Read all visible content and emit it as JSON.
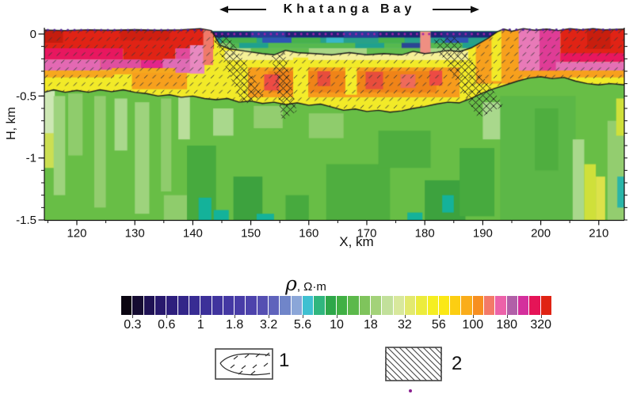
{
  "title": {
    "text": "Khatanga Bay"
  },
  "axes": {
    "x_label": "X, km",
    "y_label": "H, km",
    "x_ticks": [
      120,
      130,
      140,
      150,
      160,
      170,
      180,
      190,
      200,
      210
    ],
    "x_minor_ticks": [
      115,
      125,
      135,
      145,
      155,
      165,
      175,
      185,
      195,
      205
    ],
    "y_ticks": [
      0,
      -0.5,
      -1,
      -1.5
    ],
    "y_tick_labels": [
      "0",
      "-0.5",
      "-1",
      "-1.5"
    ],
    "y_minor_step": 0.1
  },
  "colorbar": {
    "title_rho": "ρ",
    "title_units": ", Ω·m",
    "labels": [
      "0.3",
      "0.6",
      "1",
      "1.8",
      "3.2",
      "5.6",
      "10",
      "18",
      "32",
      "56",
      "100",
      "180",
      "320"
    ],
    "colors": [
      "#0a0511",
      "#150c31",
      "#1f1254",
      "#28196d",
      "#2e1f7d",
      "#332689",
      "#382c93",
      "#3c3099",
      "#40349e",
      "#4438a3",
      "#483ca7",
      "#4d43ac",
      "#554fb2",
      "#5f63bc",
      "#7085c9",
      "#8ba6d8",
      "#3fc0d1",
      "#30b67e",
      "#2ea749",
      "#41b044",
      "#5cb94b",
      "#7fc45c",
      "#a3d279",
      "#c2e09b",
      "#d8e89c",
      "#e2e96e",
      "#ecec3c",
      "#f5ee21",
      "#fbe815",
      "#fcce12",
      "#faad1a",
      "#f78f20",
      "#f37a68",
      "#ec62a9",
      "#b160a8",
      "#d4309d",
      "#e51457",
      "#e02314"
    ]
  },
  "legend": {
    "items": [
      {
        "label": "1",
        "pattern": "sediment-wedge-with-dashes"
      },
      {
        "label": "2",
        "pattern": "diagonal-hatch"
      }
    ]
  },
  "chart_data": {
    "type": "heatmap",
    "title": "Khatanga Bay resistivity depth section",
    "value_label": "ρ, Ω·m",
    "xlabel": "X, km",
    "ylabel": "H, km",
    "x_range": [
      114.4,
      214.4
    ],
    "h_range": [
      0.051,
      -1.5
    ],
    "value_scale_labels": [
      0.3,
      0.6,
      1,
      1.8,
      3.2,
      5.6,
      10,
      18,
      32,
      56,
      100,
      180,
      320
    ],
    "section": {
      "green_base": "#68be46",
      "yellow_base": "#f2ea28",
      "bay_base": "#27a08a",
      "bay_top": 0.022,
      "bay_span": [
        143.2,
        193.4
      ],
      "line_color": "#1c1c1c",
      "surface_line": [
        [
          114.4,
          0.032
        ],
        [
          118,
          0.028
        ],
        [
          122,
          0.034
        ],
        [
          126,
          0.03
        ],
        [
          130,
          0.035
        ],
        [
          134,
          0.03
        ],
        [
          138,
          0.034
        ],
        [
          141.3,
          0.044
        ],
        [
          143.2,
          0.028
        ],
        [
          144.7,
          -0.09
        ],
        [
          146.2,
          -0.118
        ],
        [
          149,
          -0.138
        ],
        [
          152,
          -0.158
        ],
        [
          154,
          -0.168
        ],
        [
          156,
          -0.132
        ],
        [
          158,
          -0.15
        ],
        [
          161,
          -0.158
        ],
        [
          164,
          -0.168
        ],
        [
          167,
          -0.15
        ],
        [
          170,
          -0.168
        ],
        [
          173,
          -0.158
        ],
        [
          176,
          -0.168
        ],
        [
          178,
          -0.14
        ],
        [
          180,
          -0.158
        ],
        [
          182,
          -0.148
        ],
        [
          184,
          -0.132
        ],
        [
          186,
          -0.142
        ],
        [
          188,
          -0.112
        ],
        [
          189.5,
          -0.072
        ],
        [
          191,
          -0.032
        ],
        [
          192.5,
          0.018
        ],
        [
          193.6,
          0.04
        ],
        [
          195,
          0.022
        ],
        [
          197,
          0.044
        ],
        [
          199,
          0.03
        ],
        [
          201,
          0.04
        ],
        [
          203,
          0.028
        ],
        [
          205,
          0.044
        ],
        [
          207,
          0.034
        ],
        [
          209,
          0.044
        ],
        [
          211,
          0.034
        ],
        [
          214.4,
          0.04
        ]
      ],
      "base_line": [
        [
          114.4,
          -0.47
        ],
        [
          116,
          -0.45
        ],
        [
          118,
          -0.47
        ],
        [
          120,
          -0.455
        ],
        [
          122,
          -0.47
        ],
        [
          124,
          -0.45
        ],
        [
          126,
          -0.465
        ],
        [
          128,
          -0.45
        ],
        [
          130,
          -0.47
        ],
        [
          132,
          -0.48
        ],
        [
          134,
          -0.5
        ],
        [
          136,
          -0.49
        ],
        [
          138,
          -0.51
        ],
        [
          140,
          -0.5
        ],
        [
          142,
          -0.52
        ],
        [
          144,
          -0.53
        ],
        [
          146,
          -0.52
        ],
        [
          148,
          -0.55
        ],
        [
          150,
          -0.54
        ],
        [
          152,
          -0.56
        ],
        [
          154,
          -0.55
        ],
        [
          156,
          -0.57
        ],
        [
          158,
          -0.555
        ],
        [
          160,
          -0.575
        ],
        [
          162,
          -0.565
        ],
        [
          164,
          -0.59
        ],
        [
          166,
          -0.615
        ],
        [
          168,
          -0.605
        ],
        [
          170,
          -0.625
        ],
        [
          172,
          -0.615
        ],
        [
          174,
          -0.63
        ],
        [
          176,
          -0.62
        ],
        [
          178,
          -0.6
        ],
        [
          180,
          -0.585
        ],
        [
          182,
          -0.565
        ],
        [
          184,
          -0.55
        ],
        [
          186,
          -0.555
        ],
        [
          188,
          -0.52
        ],
        [
          190,
          -0.475
        ],
        [
          192,
          -0.44
        ],
        [
          194,
          -0.41
        ],
        [
          196,
          -0.38
        ],
        [
          198,
          -0.355
        ],
        [
          200,
          -0.345
        ],
        [
          202,
          -0.36
        ],
        [
          204,
          -0.35
        ],
        [
          206,
          -0.38
        ],
        [
          208,
          -0.4
        ],
        [
          210,
          -0.41
        ],
        [
          212,
          -0.4
        ],
        [
          214.4,
          -0.41
        ]
      ],
      "green_patches": [
        [
          114.4,
          -0.46,
          1.8,
          0.36,
          "#cde7b4"
        ],
        [
          114.4,
          -0.8,
          1.7,
          0.28,
          "#ccdf52"
        ],
        [
          116,
          -0.5,
          2,
          0.8,
          "#9ed37d"
        ],
        [
          118.5,
          -0.48,
          2.5,
          0.5,
          "#8fcc6c"
        ],
        [
          123,
          -0.5,
          2,
          0.9,
          "#93cd6f"
        ],
        [
          126.5,
          -0.52,
          2.2,
          0.42,
          "#a9d88c"
        ],
        [
          130,
          -0.55,
          2.5,
          0.9,
          "#9ed37d"
        ],
        [
          134.5,
          -0.52,
          1.8,
          0.75,
          "#8fcc6c"
        ],
        [
          137.5,
          -0.5,
          2,
          0.35,
          "#b9de9a"
        ],
        [
          135,
          -1.3,
          4,
          0.2,
          "#8fcc6c"
        ],
        [
          139,
          -0.9,
          5,
          0.6,
          "#47aa3e"
        ],
        [
          143.5,
          -0.6,
          3.5,
          0.22,
          "#a9d88c"
        ],
        [
          141,
          -1.32,
          2.2,
          0.18,
          "#14b29a"
        ],
        [
          143.6,
          -1.42,
          2.6,
          0.08,
          "#14b29a"
        ],
        [
          147,
          -1.15,
          5,
          0.35,
          "#3da23e"
        ],
        [
          150.5,
          -0.58,
          5,
          0.18,
          "#93cd6f"
        ],
        [
          156,
          -1.3,
          4,
          0.2,
          "#47aa3e"
        ],
        [
          160,
          -0.64,
          6,
          0.2,
          "#8fcc6c"
        ],
        [
          163,
          -1.05,
          11,
          0.45,
          "#4fae3f"
        ],
        [
          172,
          -0.78,
          9,
          0.3,
          "#4fae3f"
        ],
        [
          177,
          -1.44,
          2.6,
          0.07,
          "#14b29a"
        ],
        [
          180,
          -1.18,
          7,
          0.32,
          "#3da23e"
        ],
        [
          183,
          -1.3,
          2,
          0.14,
          "#14b29a"
        ],
        [
          186,
          -0.92,
          6,
          0.55,
          "#47aa3e"
        ],
        [
          190,
          -0.55,
          4,
          0.3,
          "#a9d88c"
        ],
        [
          193,
          -0.5,
          13,
          1.0,
          "#5cb747"
        ],
        [
          199,
          -0.6,
          4,
          0.5,
          "#4fae3f"
        ],
        [
          205.5,
          -0.85,
          2,
          0.65,
          "#a9d88c"
        ],
        [
          207.5,
          -1.05,
          2,
          0.45,
          "#cfe03a"
        ],
        [
          209.5,
          -1.15,
          1.6,
          0.35,
          "#dce24a"
        ],
        [
          211.5,
          -0.7,
          2.9,
          0.8,
          "#93cd6f"
        ],
        [
          213,
          -0.52,
          1.4,
          0.3,
          "#cfe03a"
        ],
        [
          213.2,
          -1.15,
          1.2,
          0.25,
          "#2ab5a8"
        ],
        [
          151,
          -1.45,
          3,
          0.05,
          "#14b29a"
        ]
      ],
      "resistive_patches": [
        [
          114.4,
          0.05,
          29.2,
          0.17,
          "#e02315"
        ],
        [
          114.4,
          0.05,
          3.2,
          0.12,
          "#c41d0e"
        ],
        [
          127.5,
          0.05,
          8.5,
          0.1,
          "#cf1f10"
        ],
        [
          114.4,
          -0.115,
          13.6,
          0.09,
          "#e8175f"
        ],
        [
          128,
          -0.115,
          9,
          0.095,
          "#e02315"
        ],
        [
          137,
          -0.115,
          5.2,
          0.09,
          "#e24a9b"
        ],
        [
          114.4,
          -0.205,
          9.6,
          0.09,
          "#e369b3"
        ],
        [
          124,
          -0.205,
          7,
          0.085,
          "#df4f9f"
        ],
        [
          131,
          -0.21,
          4,
          0.075,
          "#e2258b"
        ],
        [
          134.8,
          -0.2,
          7.2,
          0.115,
          "#e06cb5"
        ],
        [
          139.5,
          -0.09,
          2.5,
          0.23,
          "#e889c0"
        ],
        [
          141.8,
          0.05,
          1.7,
          0.3,
          "#ef7a6a"
        ],
        [
          114.4,
          -0.295,
          12,
          0.055,
          "#f6a81e"
        ],
        [
          126,
          -0.275,
          11,
          0.05,
          "#f6a81e"
        ],
        [
          129.5,
          -0.315,
          9.5,
          0.13,
          "#f7a01d"
        ],
        [
          145.5,
          -0.135,
          42,
          0.075,
          "#f5f096"
        ],
        [
          149.5,
          -0.27,
          36.5,
          0.24,
          "#f79c1c"
        ],
        [
          153,
          -0.3,
          29,
          0.17,
          "#f08418"
        ],
        [
          152.3,
          -0.325,
          2.6,
          0.13,
          "#ed4b44"
        ],
        [
          161.5,
          -0.3,
          2.2,
          0.12,
          "#e84d3c"
        ],
        [
          169.8,
          -0.305,
          3.0,
          0.14,
          "#e84d3c"
        ],
        [
          175.8,
          -0.325,
          2.6,
          0.11,
          "#ef6a5a"
        ],
        [
          180.8,
          -0.295,
          2.2,
          0.12,
          "#ed4b44"
        ],
        [
          157.3,
          -0.19,
          2.6,
          0.36,
          "#f4ec2a"
        ],
        [
          166.3,
          -0.27,
          2.0,
          0.22,
          "#f4ec2a"
        ],
        [
          188.8,
          0.05,
          8.2,
          0.45,
          "#f7a01d"
        ],
        [
          191.5,
          0.05,
          1.7,
          0.43,
          "#f2ea28"
        ],
        [
          196.2,
          0.05,
          4,
          0.38,
          "#e87ab8"
        ],
        [
          199.8,
          0.05,
          3.6,
          0.4,
          "#df3c96"
        ],
        [
          203.4,
          0.05,
          11,
          0.27,
          "#e02315"
        ],
        [
          208,
          0.05,
          4,
          0.17,
          "#c81e0e"
        ],
        [
          203.4,
          -0.155,
          11,
          0.07,
          "#e8175f"
        ],
        [
          202.6,
          -0.225,
          11.8,
          0.07,
          "#e470b4"
        ],
        [
          196,
          -0.295,
          18.4,
          0.055,
          "#f7a01d"
        ]
      ],
      "bay_patches": [
        [
          143.2,
          0.022,
          50.2,
          0.052,
          "#1c2476"
        ],
        [
          150,
          0.022,
          6,
          0.052,
          "#283a9a"
        ],
        [
          166,
          0.022,
          6,
          0.052,
          "#283a9a"
        ],
        [
          183,
          0.022,
          5,
          0.052,
          "#232e86"
        ],
        [
          143.2,
          -0.03,
          50.2,
          0.042,
          "#27a08a"
        ],
        [
          145,
          -0.03,
          6,
          0.042,
          "#47b24c"
        ],
        [
          157,
          -0.03,
          5,
          0.042,
          "#47b24c"
        ],
        [
          172,
          -0.03,
          4.5,
          0.042,
          "#47b24c"
        ],
        [
          152,
          -0.03,
          5,
          0.042,
          "#2f55b5"
        ],
        [
          163,
          -0.03,
          3,
          0.042,
          "#38b7c8"
        ],
        [
          183.5,
          -0.03,
          4,
          0.042,
          "#2f55b5"
        ],
        [
          143.2,
          -0.072,
          50.2,
          0.042,
          "#56b94f"
        ],
        [
          148,
          -0.072,
          5,
          0.042,
          "#1fa08f"
        ],
        [
          168,
          -0.072,
          5,
          0.042,
          "#1fa08f"
        ],
        [
          176,
          -0.072,
          5,
          0.042,
          "#2a4694"
        ],
        [
          186.5,
          -0.072,
          4,
          0.042,
          "#1fa08f"
        ],
        [
          143.2,
          -0.072,
          3.3,
          0.042,
          "#8fcb70"
        ],
        [
          143.2,
          -0.114,
          50.2,
          0.08,
          "#a8d584"
        ],
        [
          150,
          -0.114,
          10,
          0.08,
          "#63bd4f"
        ],
        [
          170,
          -0.114,
          10,
          0.08,
          "#63bd4f"
        ],
        [
          179.2,
          0.022,
          1.8,
          0.19,
          "#ef8f82"
        ]
      ],
      "dash_pattern": {
        "color": "#3a3a3a",
        "len": 4.2,
        "dx": 10.5,
        "dy": 9.5
      },
      "crosshatch": {
        "spacing": 9,
        "color": "#1c1c1c",
        "zones": [
          [
            [
              143.0,
              0.02
            ],
            [
              146.3,
              -0.02
            ],
            [
              152.3,
              -0.5
            ],
            [
              148.6,
              -0.57
            ]
          ],
          [
            [
              153.6,
              -0.18
            ],
            [
              155.8,
              -0.14
            ],
            [
              157.9,
              -0.62
            ],
            [
              155.4,
              -0.7
            ]
          ],
          [
            [
              181.3,
              -0.05
            ],
            [
              185.2,
              -0.02
            ],
            [
              193.6,
              -0.58
            ],
            [
              189.2,
              -0.68
            ]
          ]
        ]
      },
      "dot_rows": [
        {
          "from": 115,
          "to": 142.5,
          "step": 1.15,
          "h": 0.032,
          "color": "#4a1d8f"
        },
        {
          "from": 144,
          "to": 192,
          "step": 1.05,
          "h": 0.0,
          "color": "#a224a8"
        },
        {
          "from": 193.5,
          "to": 214,
          "step": 1.15,
          "h": 0.035,
          "color": "#4a1d8f"
        }
      ]
    }
  }
}
